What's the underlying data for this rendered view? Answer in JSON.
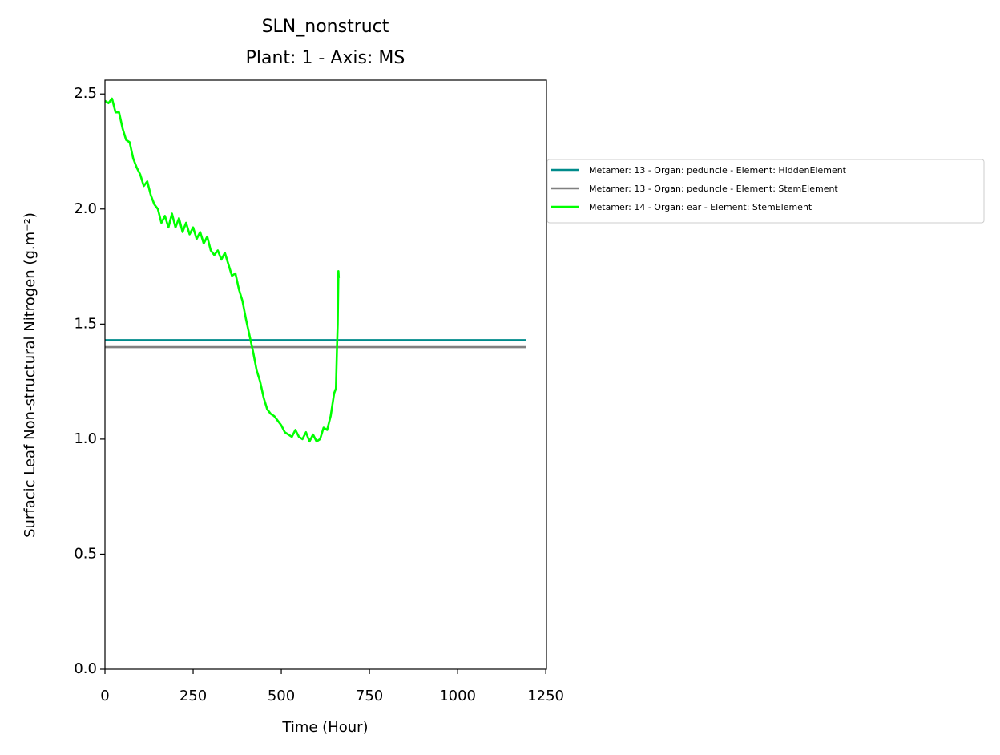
{
  "chart_data": {
    "type": "line",
    "title": [
      "SLN_nonstruct",
      "Plant: 1 - Axis: MS"
    ],
    "x_label": "Time (Hour)",
    "y_label": "Surfacic Leaf Non-structural Nitrogen (g.m⁻²)",
    "xlim": [
      0,
      1252
    ],
    "ylim": [
      0,
      2.56
    ],
    "xticks": [
      0,
      250,
      500,
      750,
      1000,
      1250
    ],
    "yticks": [
      {
        "value": 0,
        "label": "0.0"
      },
      0.5,
      {
        "value": 1,
        "label": "1.0"
      },
      1.5,
      {
        "value": 2,
        "label": "2.0"
      },
      2.5
    ],
    "grid": false,
    "legend": "outside-right",
    "series": [
      {
        "name": "Metamer: 13 - Organ: peduncle - Element: HiddenElement",
        "color": "#008b8b",
        "x": [
          0,
          1195
        ],
        "values": [
          1.43,
          1.43
        ]
      },
      {
        "name": "Metamer: 13 - Organ: peduncle - Element: StemElement",
        "color": "#808080",
        "x": [
          0,
          1195
        ],
        "values": [
          1.4,
          1.4
        ]
      },
      {
        "name": "Metamer: 14 - Organ: ear - Element: StemElement",
        "color": "#00ff00",
        "x": [
          0,
          10,
          20,
          30,
          40,
          50,
          60,
          70,
          80,
          90,
          100,
          110,
          120,
          130,
          140,
          150,
          160,
          170,
          180,
          190,
          200,
          210,
          220,
          230,
          240,
          250,
          260,
          270,
          280,
          290,
          300,
          310,
          320,
          330,
          340,
          350,
          360,
          370,
          380,
          390,
          400,
          410,
          420,
          430,
          440,
          450,
          460,
          470,
          480,
          490,
          500,
          510,
          520,
          530,
          540,
          550,
          560,
          570,
          580,
          590,
          600,
          610,
          620,
          630,
          640,
          645,
          650,
          655,
          658,
          660,
          662,
          663
        ],
        "values": [
          2.47,
          2.46,
          2.48,
          2.42,
          2.42,
          2.35,
          2.3,
          2.29,
          2.22,
          2.18,
          2.15,
          2.1,
          2.12,
          2.06,
          2.02,
          2.0,
          1.94,
          1.97,
          1.92,
          1.98,
          1.92,
          1.96,
          1.9,
          1.94,
          1.89,
          1.92,
          1.87,
          1.9,
          1.85,
          1.88,
          1.82,
          1.8,
          1.82,
          1.78,
          1.81,
          1.76,
          1.71,
          1.72,
          1.65,
          1.6,
          1.52,
          1.45,
          1.38,
          1.3,
          1.25,
          1.18,
          1.13,
          1.11,
          1.1,
          1.08,
          1.06,
          1.03,
          1.02,
          1.01,
          1.04,
          1.01,
          1.0,
          1.03,
          0.99,
          1.02,
          0.99,
          1.0,
          1.05,
          1.04,
          1.1,
          1.15,
          1.2,
          1.22,
          1.4,
          1.5,
          1.73,
          1.7
        ]
      }
    ]
  }
}
